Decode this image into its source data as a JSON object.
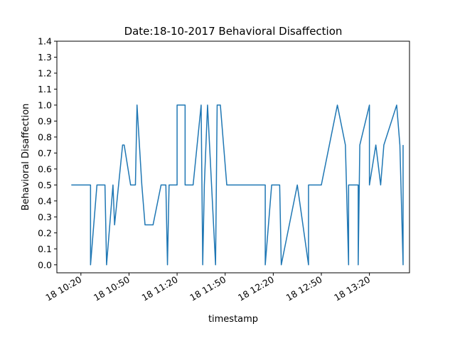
{
  "chart_data": {
    "type": "line",
    "title": "Date:18-10-2017 Behavioral Disaffection",
    "xlabel": "timestamp",
    "ylabel": "Behavioral Disaffection",
    "ylim": [
      -0.05,
      1.4
    ],
    "xlim": [
      "10:05",
      "13:45"
    ],
    "x_ticks": [
      {
        "time": "10:20",
        "label": "18 10:20"
      },
      {
        "time": "10:50",
        "label": "18 10:50"
      },
      {
        "time": "11:20",
        "label": "18 11:20"
      },
      {
        "time": "11:50",
        "label": "18 11:50"
      },
      {
        "time": "12:20",
        "label": "18 12:20"
      },
      {
        "time": "12:50",
        "label": "18 12:50"
      },
      {
        "time": "13:20",
        "label": "18 13:20"
      }
    ],
    "y_ticks": [
      "0.0",
      "0.1",
      "0.2",
      "0.3",
      "0.4",
      "0.5",
      "0.6",
      "0.7",
      "0.8",
      "0.9",
      "1.0",
      "1.1",
      "1.2",
      "1.3",
      "1.4"
    ],
    "grid": false,
    "series": [
      {
        "color": "#1f77b4",
        "points": [
          [
            "10:14",
            0.5
          ],
          [
            "10:26",
            0.5
          ],
          [
            "10:26",
            0.0
          ],
          [
            "10:30",
            0.5
          ],
          [
            "10:35",
            0.5
          ],
          [
            "10:36",
            0.0
          ],
          [
            "10:40",
            0.5
          ],
          [
            "10:41",
            0.25
          ],
          [
            "10:46",
            0.75
          ],
          [
            "10:47",
            0.75
          ],
          [
            "10:51",
            0.5
          ],
          [
            "10:54",
            0.5
          ],
          [
            "10:55",
            1.0
          ],
          [
            "10:58",
            0.5
          ],
          [
            "11:00",
            0.25
          ],
          [
            "11:05",
            0.25
          ],
          [
            "11:10",
            0.5
          ],
          [
            "11:13",
            0.5
          ],
          [
            "11:14",
            0.0
          ],
          [
            "11:15",
            0.5
          ],
          [
            "11:20",
            0.5
          ],
          [
            "11:20",
            1.0
          ],
          [
            "11:25",
            1.0
          ],
          [
            "11:25",
            0.5
          ],
          [
            "11:30",
            0.5
          ],
          [
            "11:35",
            1.0
          ],
          [
            "11:36",
            0.0
          ],
          [
            "11:37",
            0.5
          ],
          [
            "11:39",
            1.0
          ],
          [
            "11:44",
            0.0
          ],
          [
            "11:45",
            1.0
          ],
          [
            "11:47",
            1.0
          ],
          [
            "11:51",
            0.5
          ],
          [
            "12:15",
            0.5
          ],
          [
            "12:15",
            0.0
          ],
          [
            "12:19",
            0.5
          ],
          [
            "12:24",
            0.5
          ],
          [
            "12:25",
            0.0
          ],
          [
            "12:35",
            0.5
          ],
          [
            "12:42",
            0.0
          ],
          [
            "12:42",
            0.5
          ],
          [
            "12:50",
            0.5
          ],
          [
            "13:00",
            1.0
          ],
          [
            "13:05",
            0.75
          ],
          [
            "13:07",
            0.0
          ],
          [
            "13:07",
            0.5
          ],
          [
            "13:13",
            0.5
          ],
          [
            "13:13",
            0.0
          ],
          [
            "13:14",
            0.75
          ],
          [
            "13:20",
            1.0
          ],
          [
            "13:20",
            0.5
          ],
          [
            "13:24",
            0.75
          ],
          [
            "13:27",
            0.5
          ],
          [
            "13:29",
            0.75
          ],
          [
            "13:37",
            1.0
          ],
          [
            "13:39",
            0.75
          ],
          [
            "13:41",
            0.0
          ],
          [
            "13:41",
            0.75
          ]
        ]
      }
    ]
  }
}
